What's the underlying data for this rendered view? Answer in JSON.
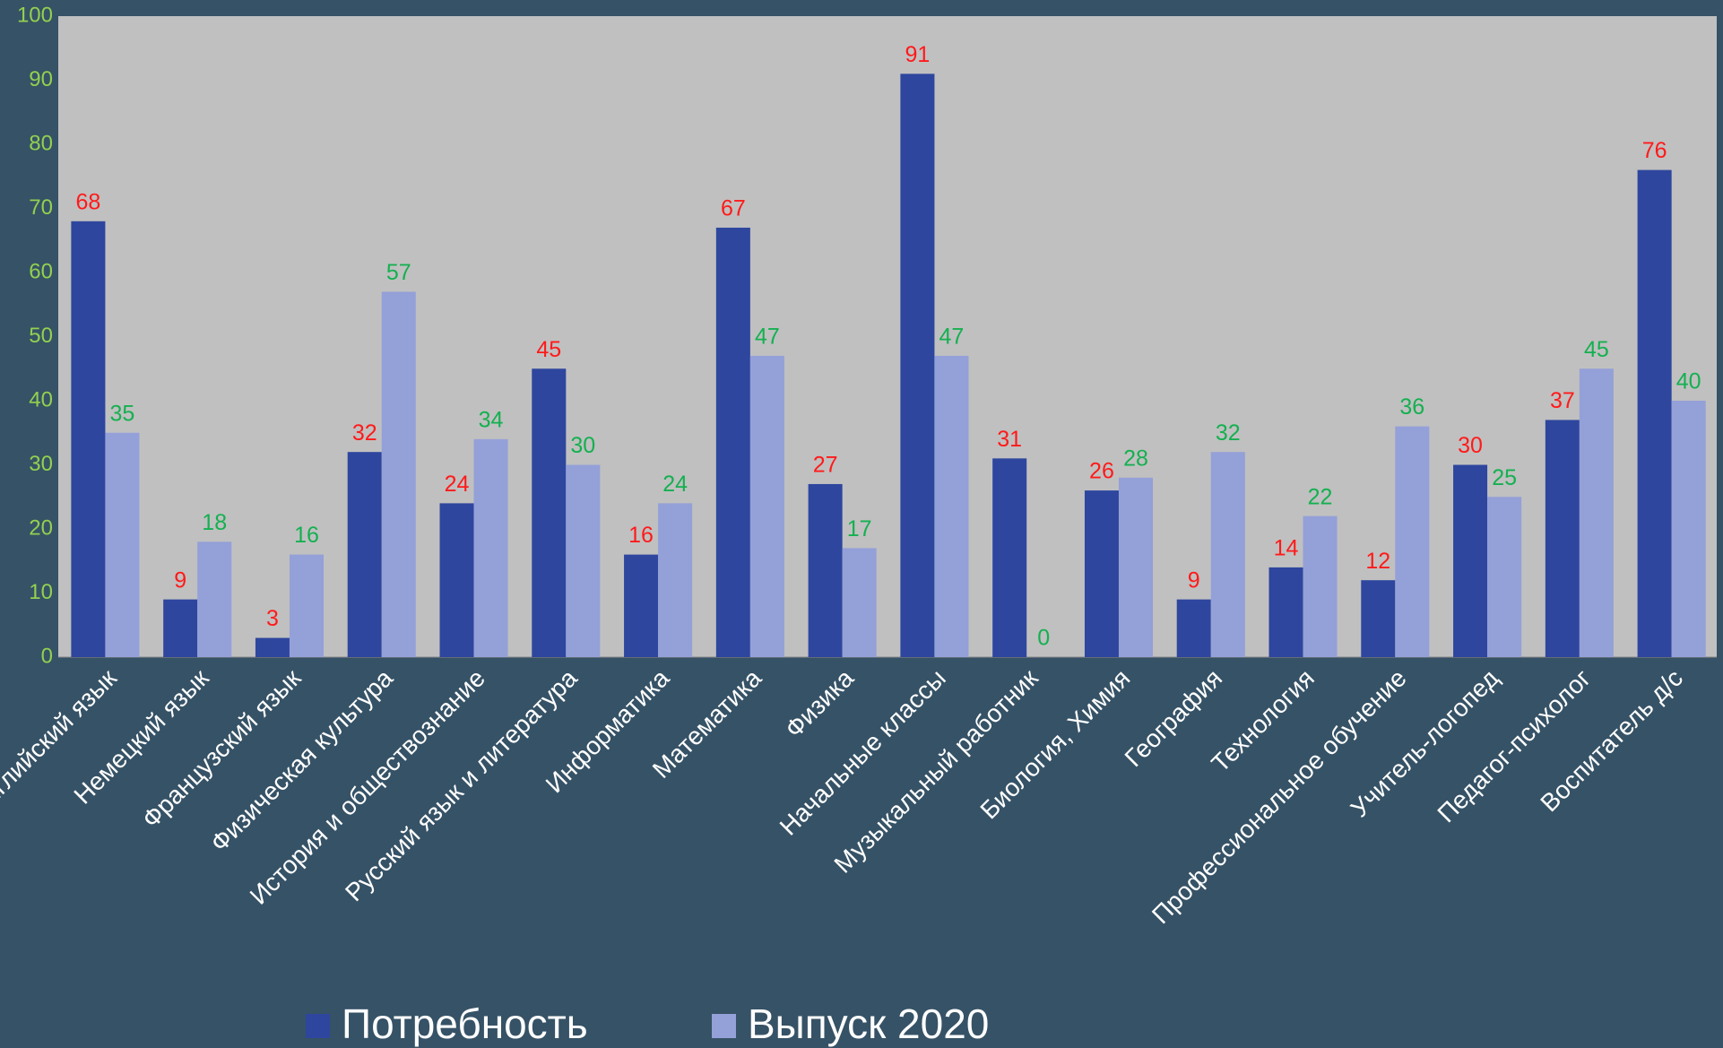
{
  "chart_data": {
    "type": "bar",
    "categories": [
      "Английский язык",
      "Немецкий язык",
      "Французский язык",
      "Физическая культура",
      "История и обществознание",
      "Русский язык и литература",
      "Информатика",
      "Математика",
      "Физика",
      "Начальные классы",
      "Музыкальный работник",
      "Биология, Химия",
      "География",
      "Технология",
      "Профессиональное обучение",
      "Учитель-логопед",
      "Педагог-психолог",
      "Воспитатель д/с"
    ],
    "series": [
      {
        "name": "Потребность",
        "color": "#2e469e",
        "label_color": "#ff1a1a",
        "values": [
          68,
          9,
          3,
          32,
          24,
          45,
          16,
          67,
          27,
          91,
          31,
          26,
          9,
          14,
          12,
          30,
          37,
          76
        ]
      },
      {
        "name": "Выпуск 2020",
        "color": "#94a0d8",
        "label_color": "#14b050",
        "values": [
          35,
          18,
          16,
          57,
          34,
          30,
          24,
          47,
          17,
          47,
          0,
          28,
          32,
          22,
          36,
          25,
          45,
          40
        ]
      }
    ],
    "ylim": [
      0,
      100
    ],
    "yticks": [
      0,
      10,
      20,
      30,
      40,
      50,
      60,
      70,
      80,
      90,
      100
    ],
    "grid": false,
    "legend": "bottom"
  }
}
